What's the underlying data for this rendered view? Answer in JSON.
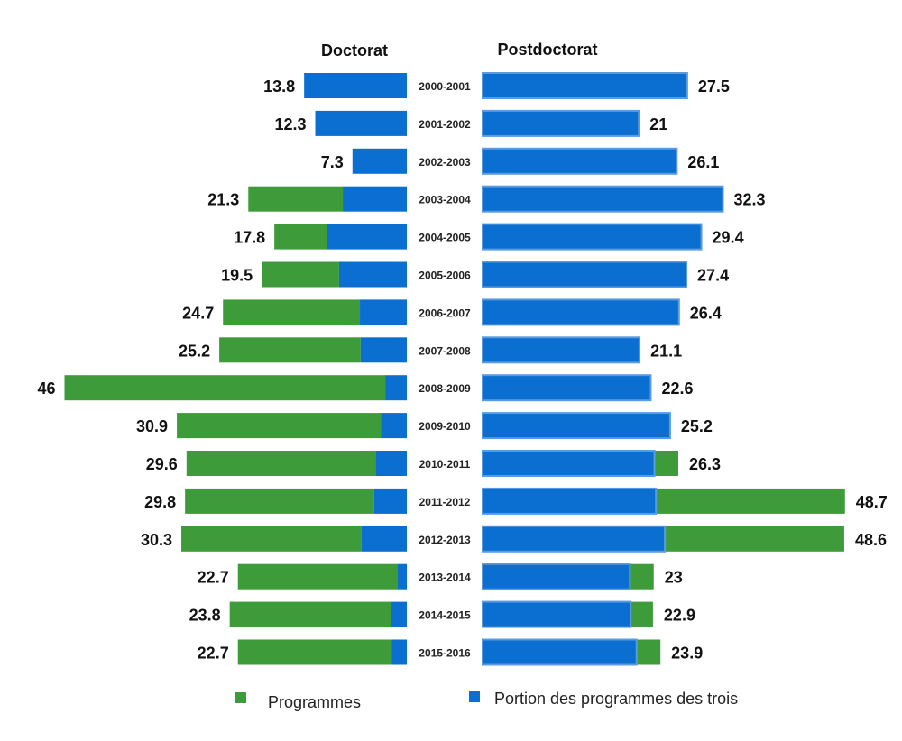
{
  "chart_data": {
    "type": "bar",
    "orientation": "horizontal-butterfly",
    "left_title": "Doctorat",
    "right_title": "Postdoctorat",
    "categories": [
      "2000-2001",
      "2001-2002",
      "2002-2003",
      "2003-2004",
      "2004-2005",
      "2005-2006",
      "2006-2007",
      "2007-2008",
      "2008-2009",
      "2009-2010",
      "2010-2011",
      "2011-2012",
      "2012-2013",
      "2013-2014",
      "2014-2015",
      "2015-2016"
    ],
    "doctorat": {
      "totals": [
        13.8,
        12.3,
        7.3,
        21.3,
        17.8,
        19.5,
        24.7,
        25.2,
        46,
        30.9,
        29.6,
        29.8,
        30.3,
        22.7,
        23.8,
        22.7
      ],
      "portion": [
        13.8,
        12.3,
        7.3,
        8.6,
        10.7,
        9.1,
        6.3,
        6.2,
        2.9,
        3.5,
        4.2,
        4.4,
        6.1,
        1.3,
        2.1,
        2.0
      ]
    },
    "postdoctorat": {
      "totals": [
        27.5,
        21,
        26.1,
        32.3,
        29.4,
        27.4,
        26.4,
        21.1,
        22.6,
        25.2,
        26.3,
        48.7,
        48.6,
        23,
        22.9,
        23.9
      ],
      "portion": [
        27.5,
        21,
        26.1,
        32.3,
        29.4,
        27.4,
        26.4,
        21.1,
        22.6,
        25.2,
        23.1,
        23.3,
        24.5,
        19.8,
        19.9,
        20.7
      ]
    },
    "labels": {
      "doctorat": [
        "13.8",
        "12.3",
        "7.3",
        "21.3",
        "17.8",
        "19.5",
        "24.7",
        "25.2",
        "46",
        "30.9",
        "29.6",
        "29.8",
        "30.3",
        "22.7",
        "23.8",
        "22.7"
      ],
      "postdoctorat": [
        "27.5",
        "21",
        "26.1",
        "32.3",
        "29.4",
        "27.4",
        "26.4",
        "21.1",
        "22.6",
        "25.2",
        "26.3",
        "48.7",
        "48.6",
        "23",
        "22.9",
        "23.9"
      ]
    },
    "legend": [
      {
        "name": "Programmes",
        "color": "#3e9b39"
      },
      {
        "name": "Portion des programmes des trois",
        "color": "#0a6fd0"
      }
    ],
    "legend_position": "bottom",
    "grid": false
  },
  "colors": {
    "programmes": "#3e9b39",
    "portion": "#0a6fd0",
    "portion_stroke": "#5a9be0"
  }
}
